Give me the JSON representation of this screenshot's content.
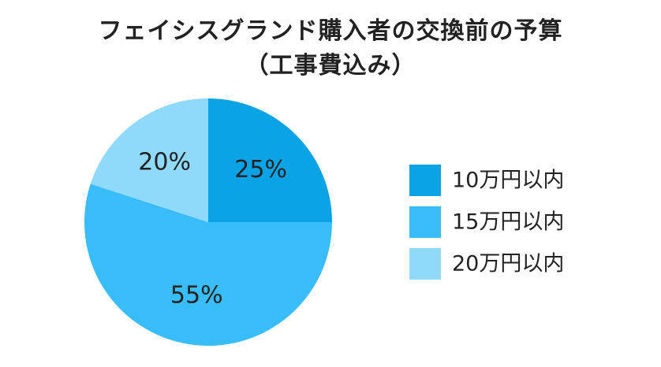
{
  "title_line1": "フェイシスグランド購入者の交換前の予算",
  "title_line2": "（工事費込み）",
  "chart_data": {
    "type": "pie",
    "title": "フェイシスグランド購入者の交換前の予算（工事費込み）",
    "legend_position": "right",
    "slices": [
      {
        "name": "10万円以内",
        "value": 25,
        "label": "25%",
        "color": "#0aa3e6"
      },
      {
        "name": "15万円以内",
        "value": 55,
        "label": "55%",
        "color": "#38bdf8"
      },
      {
        "name": "20万円以内",
        "value": 20,
        "label": "20%",
        "color": "#8fd9fb"
      }
    ]
  }
}
